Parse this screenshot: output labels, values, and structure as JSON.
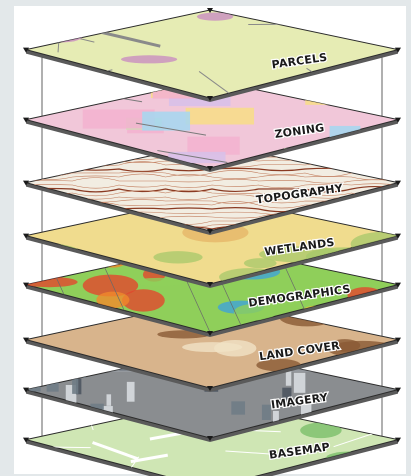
{
  "layers": [
    {
      "label": "PARCELS",
      "color": "#e6ecb4",
      "accent": "#c98fc0"
    },
    {
      "label": "ZONING",
      "color": "#f1c7d9",
      "accent": "#a9d6ee"
    },
    {
      "label": "TOPOGRAPHY",
      "color": "#f2ede2",
      "accent": "#9b4a2e"
    },
    {
      "label": "WETLANDS",
      "color": "#f0dc8e",
      "accent": "#a7c86a"
    },
    {
      "label": "DEMOGRAPHICS",
      "color": "#8fcf5a",
      "accent": "#e2462d"
    },
    {
      "label": "LAND COVER",
      "color": "#d8b48c",
      "accent": "#8a5a34"
    },
    {
      "label": "IMAGERY",
      "color": "#8a8d90",
      "accent": "#4c5561"
    },
    {
      "label": "BASEMAP",
      "color": "#cfe6b4",
      "accent": "#7bbf6a"
    }
  ]
}
